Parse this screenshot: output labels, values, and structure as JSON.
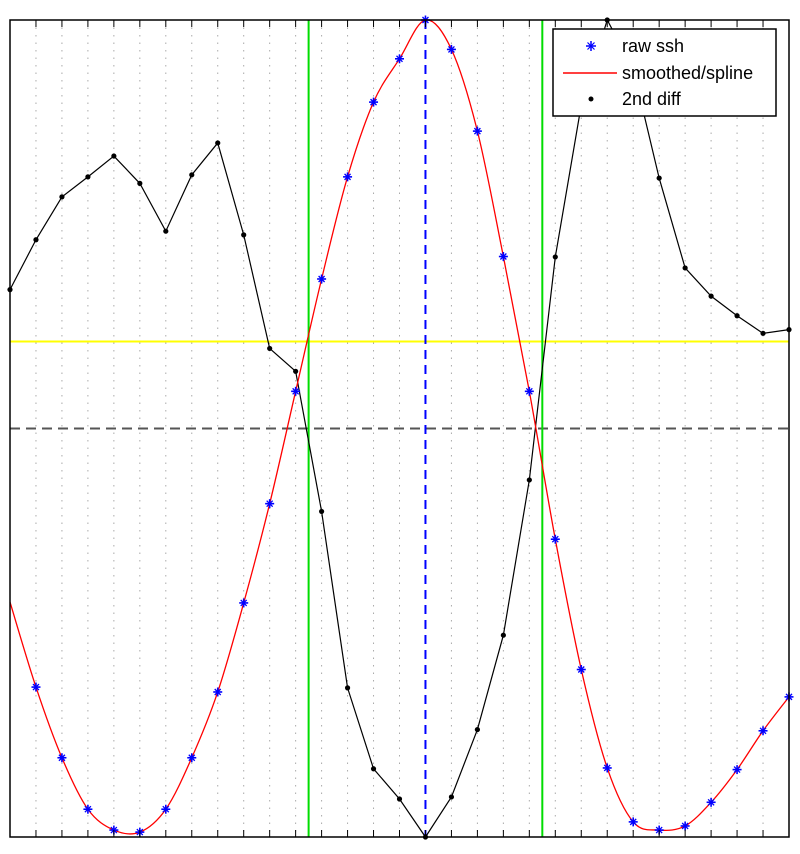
{
  "chart_data": {
    "type": "line",
    "title": "",
    "xlabel": "",
    "ylabel": "",
    "xlim": [
      0,
      30
    ],
    "ylim": [
      -1,
      1
    ],
    "grid": "vertical dotted",
    "legend_position": "top-right",
    "legend": [
      {
        "label": "raw ssh",
        "marker": "star",
        "color": "#0000ff"
      },
      {
        "label": "smoothed/spline",
        "marker": "line",
        "color": "#ff0000"
      },
      {
        "label": "2nd diff",
        "marker": "dot",
        "color": "#000000"
      }
    ],
    "series": [
      {
        "name": "raw ssh",
        "style": "markers",
        "color": "#0000ff",
        "x": [
          1,
          2,
          3,
          4,
          5,
          6,
          7,
          8,
          9,
          10,
          11,
          12,
          13,
          14,
          15,
          16,
          17,
          18,
          19,
          20,
          21,
          22,
          23,
          24,
          25,
          26,
          27,
          28,
          29,
          30
        ],
        "y": [
          -0.633,
          -0.806,
          -0.932,
          -0.983,
          -0.988,
          -0.932,
          -0.806,
          -0.645,
          -0.427,
          -0.184,
          0.091,
          0.366,
          0.616,
          0.799,
          0.905,
          1.0,
          0.928,
          0.728,
          0.421,
          0.091,
          -0.271,
          -0.59,
          -0.831,
          -0.963,
          -0.983,
          -0.973,
          -0.915,
          -0.835,
          -0.74,
          -0.657
        ]
      },
      {
        "name": "smoothed/spline",
        "style": "line",
        "color": "#ff0000",
        "x": [
          0,
          1,
          2,
          3,
          4,
          5,
          6,
          7,
          8,
          9,
          10,
          11,
          12,
          13,
          14,
          15,
          16,
          17,
          18,
          19,
          20,
          21,
          22,
          23,
          24,
          25,
          26,
          27,
          28,
          29,
          30
        ],
        "y": [
          -0.425,
          -0.633,
          -0.806,
          -0.932,
          -0.983,
          -0.988,
          -0.932,
          -0.806,
          -0.645,
          -0.427,
          -0.184,
          0.091,
          0.366,
          0.616,
          0.799,
          0.905,
          1.0,
          0.928,
          0.728,
          0.421,
          0.091,
          -0.271,
          -0.59,
          -0.831,
          -0.963,
          -0.983,
          -0.973,
          -0.915,
          -0.835,
          -0.74,
          -0.657
        ]
      },
      {
        "name": "2nd diff",
        "style": "line-markers",
        "color": "#000000",
        "x": [
          0,
          1,
          2,
          3,
          4,
          5,
          6,
          7,
          8,
          9,
          10,
          11,
          12,
          13,
          14,
          15,
          16,
          17,
          18,
          19,
          20,
          21,
          22,
          23,
          24,
          25,
          26,
          27,
          28,
          29,
          30
        ],
        "y": [
          0.34,
          0.462,
          0.567,
          0.616,
          0.667,
          0.6,
          0.483,
          0.621,
          0.699,
          0.474,
          0.196,
          0.14,
          -0.203,
          -0.635,
          -0.833,
          -0.907,
          -1.0,
          -0.902,
          -0.737,
          -0.506,
          -0.126,
          0.42,
          0.792,
          1.0,
          0.88,
          0.613,
          0.393,
          0.324,
          0.276,
          0.233,
          0.242
        ]
      }
    ],
    "reference_lines": [
      {
        "orientation": "horizontal",
        "value": 0.213,
        "color": "#ffff00",
        "style": "solid"
      },
      {
        "orientation": "horizontal",
        "value": 0.0,
        "color": "#555555",
        "style": "dashed"
      },
      {
        "orientation": "vertical",
        "value": 11.5,
        "color": "#00dd00",
        "style": "solid"
      },
      {
        "orientation": "vertical",
        "value": 20.5,
        "color": "#00dd00",
        "style": "solid"
      },
      {
        "orientation": "vertical",
        "value": 16,
        "color": "#0000ff",
        "style": "dashed"
      }
    ]
  }
}
